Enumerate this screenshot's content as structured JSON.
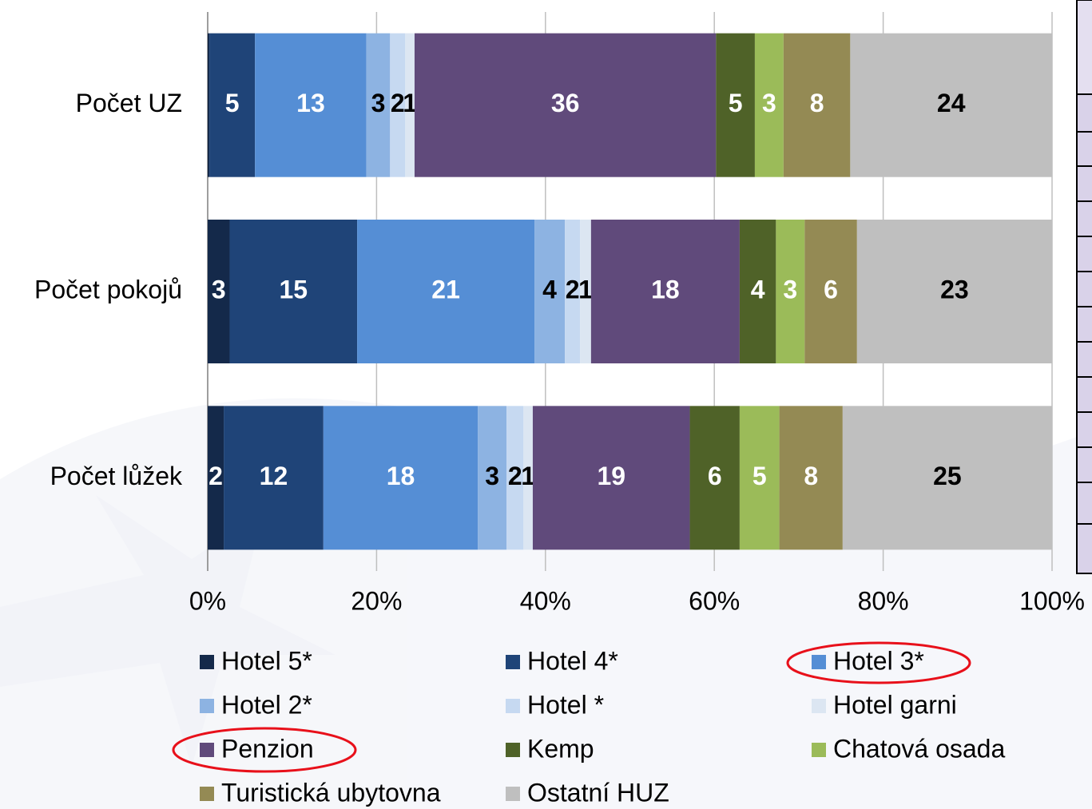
{
  "chart_data": {
    "type": "stacked_barh",
    "categories": [
      "Počet UZ",
      "Počet pokojů",
      "Počet lůžek"
    ],
    "series": [
      {
        "name": "Hotel 5*",
        "color": "#14294a",
        "label_color": "#ffffff",
        "values": [
          0.2,
          2.6,
          1.9
        ],
        "value_labels": [
          null,
          "3",
          "2"
        ]
      },
      {
        "name": "Hotel 4*",
        "color": "#1f4478",
        "label_color": "#ffffff",
        "values": [
          5.4,
          15.1,
          11.8
        ],
        "value_labels": [
          "5",
          "15",
          "12"
        ]
      },
      {
        "name": "Hotel 3*",
        "color": "#558ed5",
        "label_color": "#ffffff",
        "values": [
          13.2,
          21.0,
          18.3
        ],
        "value_labels": [
          "13",
          "21",
          "18"
        ]
      },
      {
        "name": "Hotel 2*",
        "color": "#8db3e2",
        "label_color": "#000000",
        "values": [
          2.8,
          3.6,
          3.4
        ],
        "value_labels": [
          "3",
          "4",
          "3"
        ]
      },
      {
        "name": "Hotel *",
        "color": "#c6d9f1",
        "label_color": "#000000",
        "values": [
          1.8,
          1.8,
          2.0
        ],
        "value_labels": [
          "2",
          "2",
          "2"
        ]
      },
      {
        "name": "Hotel garni",
        "color": "#dce6f2",
        "label_color": "#000000",
        "values": [
          1.1,
          1.3,
          1.1
        ],
        "value_labels": [
          "1",
          "1",
          "1"
        ]
      },
      {
        "name": "Penzion",
        "color": "#604a7b",
        "label_color": "#ffffff",
        "values": [
          35.7,
          17.6,
          18.6
        ],
        "value_labels": [
          "36",
          "18",
          "19"
        ]
      },
      {
        "name": "Kemp",
        "color": "#4f6228",
        "label_color": "#ffffff",
        "values": [
          4.6,
          4.3,
          5.9
        ],
        "value_labels": [
          "5",
          "4",
          "6"
        ]
      },
      {
        "name": "Chatová osada",
        "color": "#9bbb59",
        "label_color": "#ffffff",
        "values": [
          3.4,
          3.4,
          4.7
        ],
        "value_labels": [
          "3",
          "3",
          "5"
        ]
      },
      {
        "name": "Turistická ubytovna",
        "color": "#948a54",
        "label_color": "#ffffff",
        "values": [
          7.9,
          6.2,
          7.5
        ],
        "value_labels": [
          "8",
          "6",
          "8"
        ]
      },
      {
        "name": "Ostatní HUZ",
        "color": "#bfbfbf",
        "label_color": "#000000",
        "values": [
          23.9,
          23.1,
          24.8
        ],
        "value_labels": [
          "24",
          "23",
          "25"
        ]
      }
    ],
    "xlim": [
      0,
      100
    ],
    "xticks": [
      {
        "value": 0,
        "label": "0%"
      },
      {
        "value": 20,
        "label": "20%"
      },
      {
        "value": 40,
        "label": "40%"
      },
      {
        "value": 60,
        "label": "60%"
      },
      {
        "value": 80,
        "label": "80%"
      },
      {
        "value": 100,
        "label": "100%"
      }
    ],
    "grid": true,
    "legend": "bottom"
  }
}
